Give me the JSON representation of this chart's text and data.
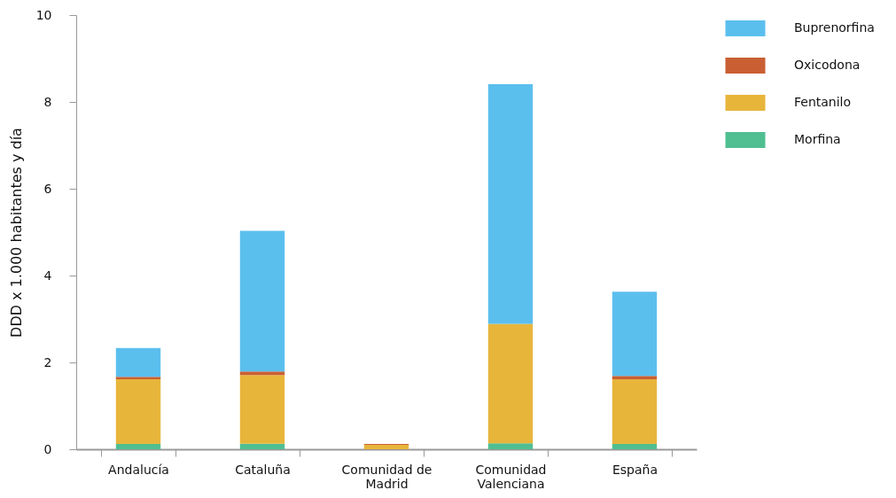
{
  "chart_data": {
    "type": "bar",
    "stacked": true,
    "ylabel": "DDD x 1.000 habitantes y día",
    "categories": [
      "Andalucía",
      "Cataluña",
      "Comunidad de Madrid",
      "Comunidad Valenciana",
      "España"
    ],
    "series": [
      {
        "name": "Morfina",
        "color": "#4fbf91",
        "values": [
          0.12,
          0.13,
          null,
          0.14,
          0.12
        ]
      },
      {
        "name": "Fentanilo",
        "color": "#e8b53b",
        "values": [
          1.49,
          1.58,
          0.1,
          2.75,
          1.49
        ]
      },
      {
        "name": "Oxicodona",
        "color": "#c95f33",
        "values": [
          0.06,
          0.08,
          0.02,
          0,
          0.08
        ]
      },
      {
        "name": "Buprenorfina",
        "color": "#5bbfee",
        "values": [
          0.66,
          3.24,
          0,
          5.52,
          1.94
        ]
      }
    ],
    "ylim": [
      0,
      10
    ],
    "yticks": [
      0,
      2,
      4,
      6,
      8,
      10
    ],
    "grid": false,
    "legend": "right"
  }
}
